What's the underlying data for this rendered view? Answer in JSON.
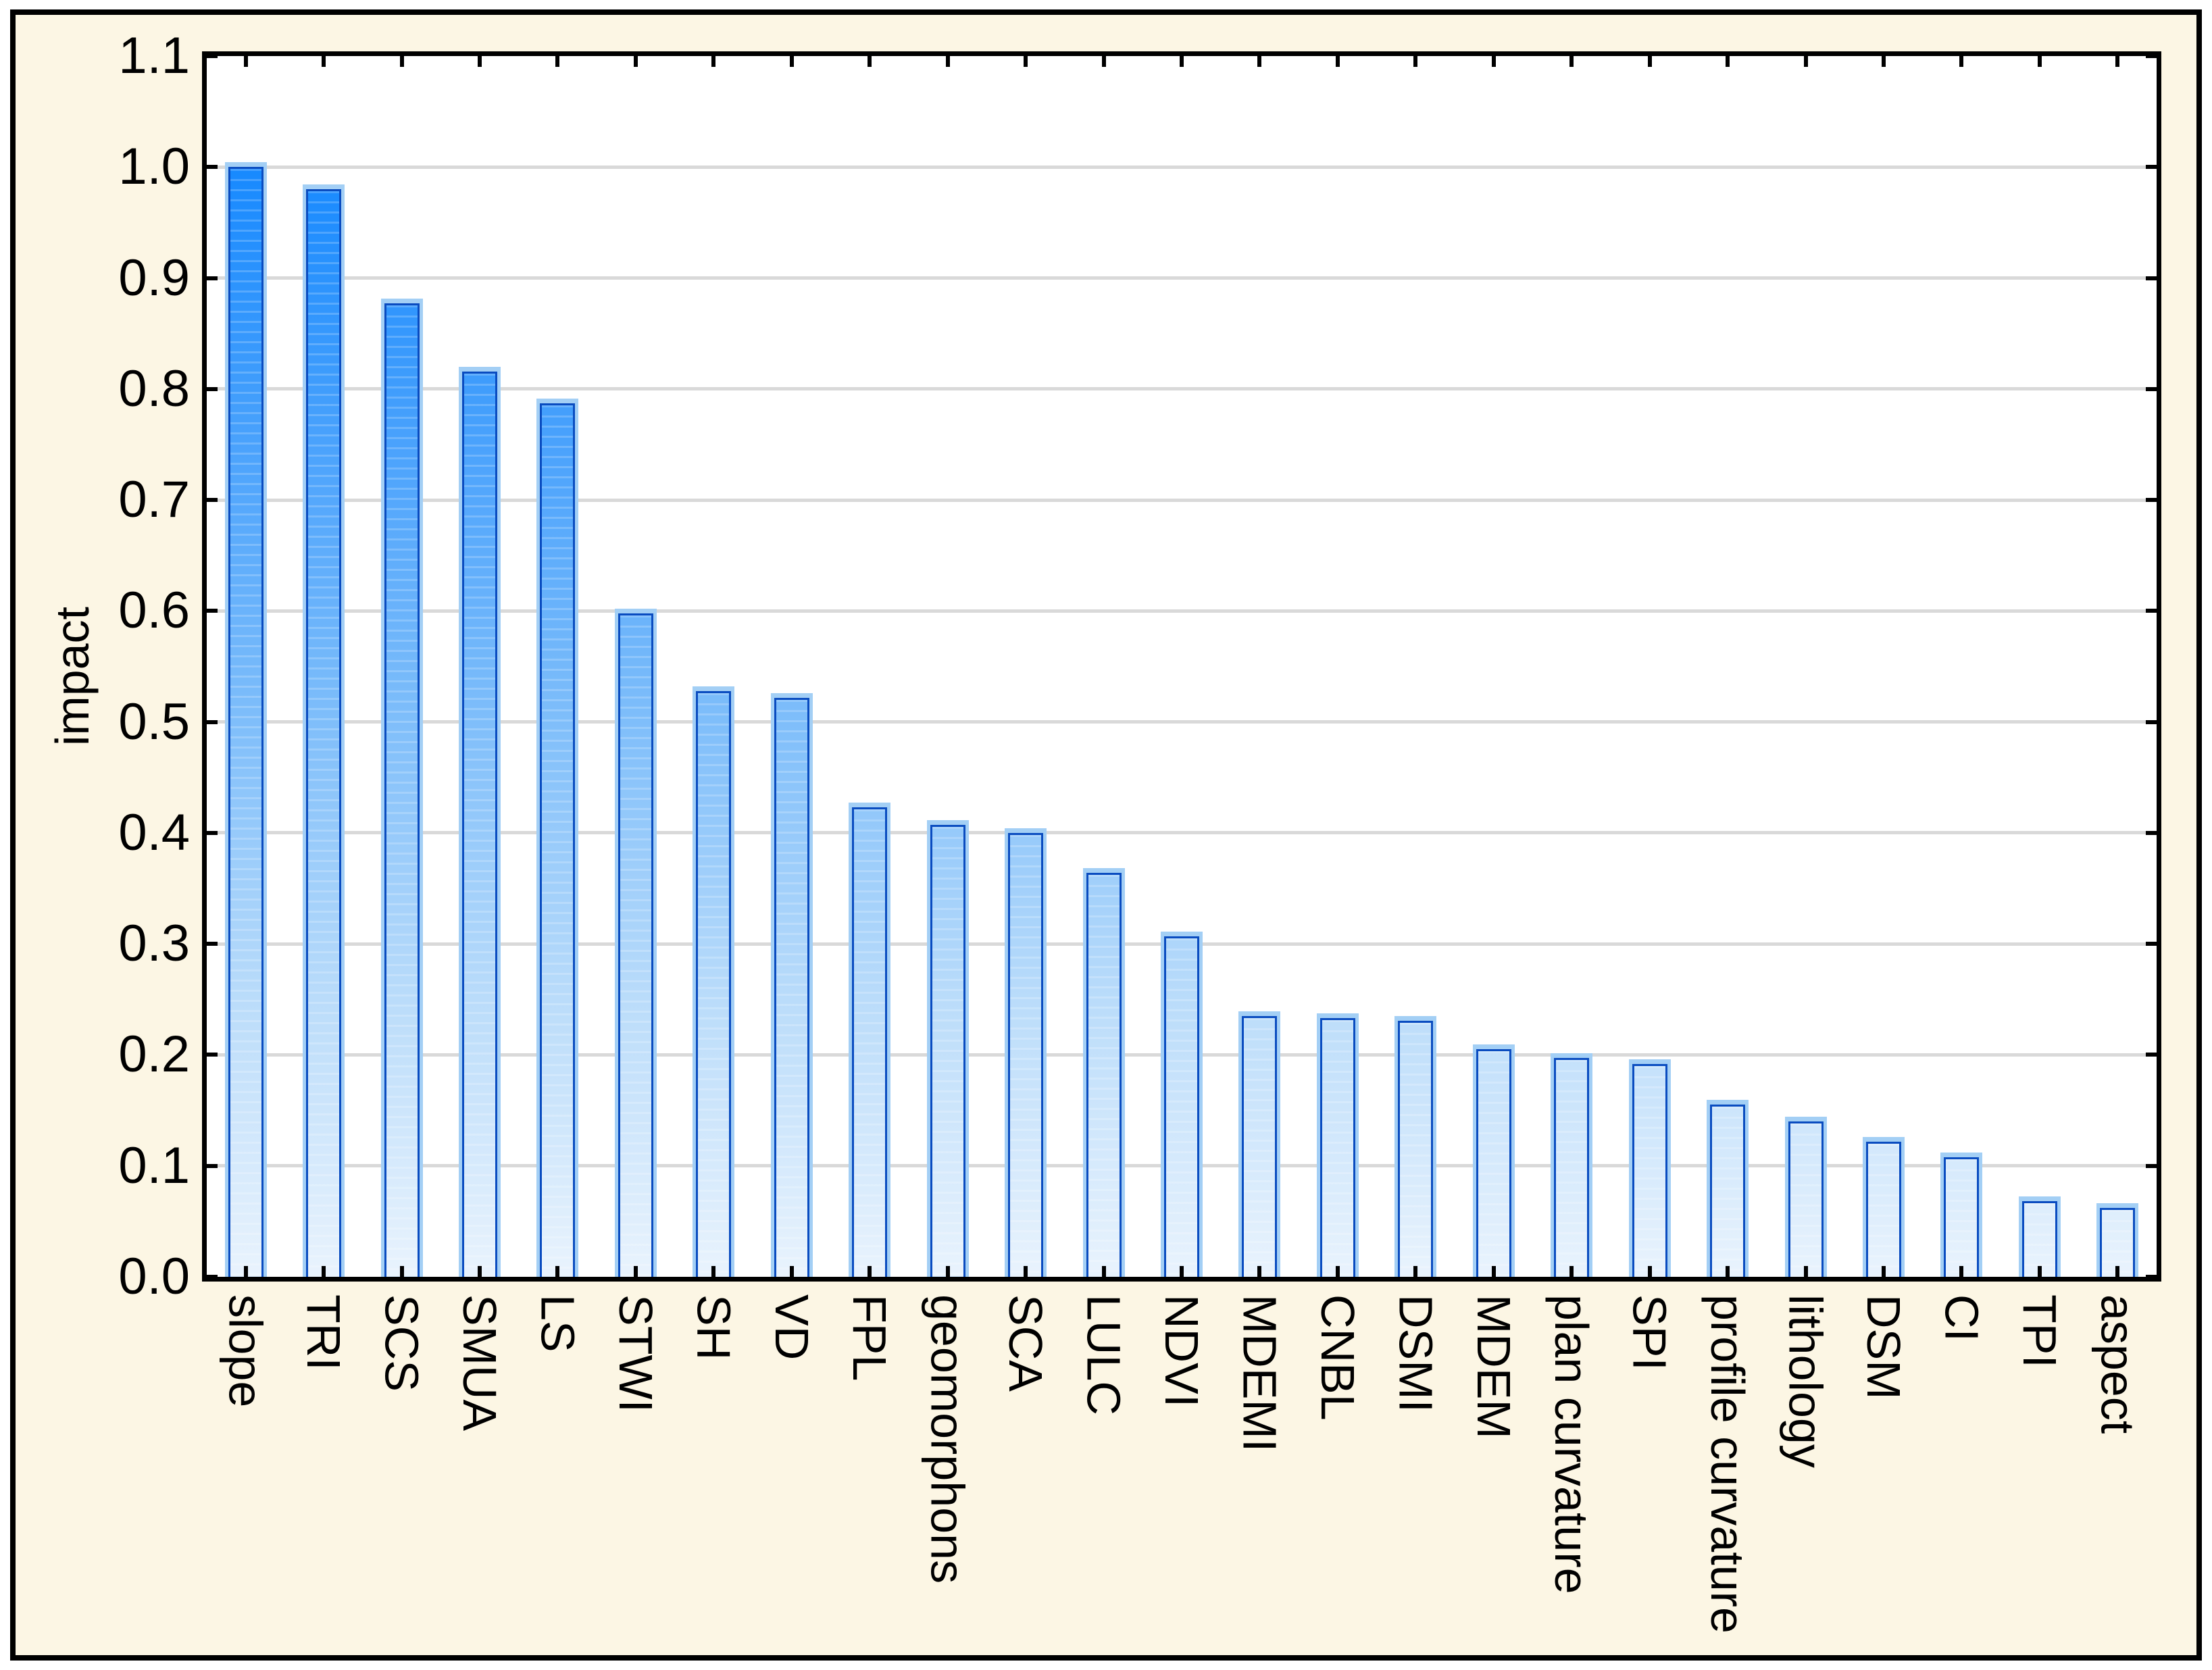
{
  "figure": {
    "background_color": "#FCF6E4",
    "plot_background_color": "#FFFFFF",
    "frame_border_color": "#000000",
    "grid_color": "#D9D9D9",
    "bar_border_color": "#0A4CC0",
    "bar_halo_color": "#A3CFF5",
    "bar_gradient": [
      "#1789FE",
      "#4AA2FC",
      "#7FBEFA",
      "#BADCFA",
      "#E9F3FD"
    ]
  },
  "chart_data": {
    "type": "bar",
    "title": "",
    "xlabel": "",
    "ylabel": "impact",
    "ylim": [
      0,
      1.1
    ],
    "ytick_step": 0.1,
    "ytick_labels": [
      "0.0",
      "0.1",
      "0.2",
      "0.3",
      "0.4",
      "0.5",
      "0.6",
      "0.7",
      "0.8",
      "0.9",
      "1.0",
      "1.1"
    ],
    "grid": "horizontal",
    "legend": false,
    "categories": [
      "slope",
      "TRI",
      "SCS",
      "SMUA",
      "LS",
      "STWI",
      "SH",
      "VD",
      "FPL",
      "geomorphons",
      "SCA",
      "LULC",
      "NDVI",
      "MDEMI",
      "CNBL",
      "DSMI",
      "MDEM",
      "plan curvature",
      "SPI",
      "profile curvature",
      "lithology",
      "DSM",
      "CI",
      "TPI",
      "aspect"
    ],
    "values": [
      1.0,
      0.98,
      0.877,
      0.816,
      0.787,
      0.598,
      0.528,
      0.522,
      0.423,
      0.407,
      0.4,
      0.364,
      0.307,
      0.235,
      0.233,
      0.231,
      0.205,
      0.197,
      0.192,
      0.155,
      0.14,
      0.122,
      0.108,
      0.068,
      0.062
    ]
  }
}
